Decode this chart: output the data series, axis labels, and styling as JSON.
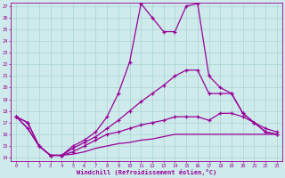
{
  "xlabel": "Windchill (Refroidissement éolien,°C)",
  "bg_color": "#ceeaea",
  "line_color": "#990099",
  "grid_color": "#aad4d4",
  "xmin": 0,
  "xmax": 23,
  "ymin": 14,
  "ymax": 27,
  "yticks": [
    14,
    15,
    16,
    17,
    18,
    19,
    20,
    21,
    22,
    23,
    24,
    25,
    26,
    27
  ],
  "xticks": [
    0,
    1,
    2,
    3,
    4,
    5,
    6,
    7,
    8,
    9,
    10,
    11,
    12,
    13,
    14,
    15,
    16,
    17,
    18,
    19,
    20,
    21,
    22,
    23
  ],
  "line1_x": [
    0,
    1,
    2,
    3,
    4,
    5,
    6,
    7,
    8,
    9,
    10,
    11,
    12,
    13,
    14,
    15,
    16,
    17,
    18,
    19,
    20,
    21,
    22,
    23
  ],
  "line1_y": [
    17.5,
    17.0,
    15.0,
    14.2,
    14.2,
    15.0,
    15.5,
    16.2,
    17.5,
    19.5,
    22.2,
    27.2,
    26.0,
    24.8,
    24.8,
    27.0,
    27.2,
    21.0,
    20.0,
    19.5,
    17.8,
    17.0,
    16.2,
    16.0
  ],
  "line2_x": [
    0,
    1,
    2,
    3,
    4,
    5,
    6,
    7,
    8,
    9,
    10,
    11,
    12,
    13,
    14,
    15,
    16,
    17,
    18,
    19,
    20,
    21,
    22,
    23
  ],
  "line2_y": [
    17.5,
    17.0,
    15.0,
    14.2,
    14.2,
    14.8,
    15.3,
    15.8,
    16.5,
    17.2,
    18.0,
    18.8,
    19.5,
    20.2,
    21.0,
    21.5,
    21.5,
    19.5,
    19.5,
    19.5,
    17.8,
    17.0,
    16.2,
    16.0
  ],
  "line3_x": [
    0,
    1,
    2,
    3,
    4,
    5,
    6,
    7,
    8,
    9,
    10,
    11,
    12,
    13,
    14,
    15,
    16,
    17,
    18,
    19,
    20,
    21,
    22,
    23
  ],
  "line3_y": [
    17.5,
    16.5,
    15.0,
    14.2,
    14.2,
    14.5,
    15.0,
    15.5,
    16.0,
    16.2,
    16.5,
    16.8,
    17.0,
    17.2,
    17.5,
    17.5,
    17.5,
    17.2,
    17.8,
    17.8,
    17.5,
    17.0,
    16.5,
    16.2
  ],
  "line4_x": [
    0,
    1,
    2,
    3,
    4,
    5,
    6,
    7,
    8,
    9,
    10,
    11,
    12,
    13,
    14,
    15,
    16,
    17,
    18,
    19,
    20,
    21,
    22,
    23
  ],
  "line4_y": [
    17.5,
    16.5,
    15.0,
    14.2,
    14.2,
    14.3,
    14.5,
    14.8,
    15.0,
    15.2,
    15.3,
    15.5,
    15.6,
    15.8,
    16.0,
    16.0,
    16.0,
    16.0,
    16.0,
    16.0,
    16.0,
    16.0,
    16.0,
    16.0
  ]
}
